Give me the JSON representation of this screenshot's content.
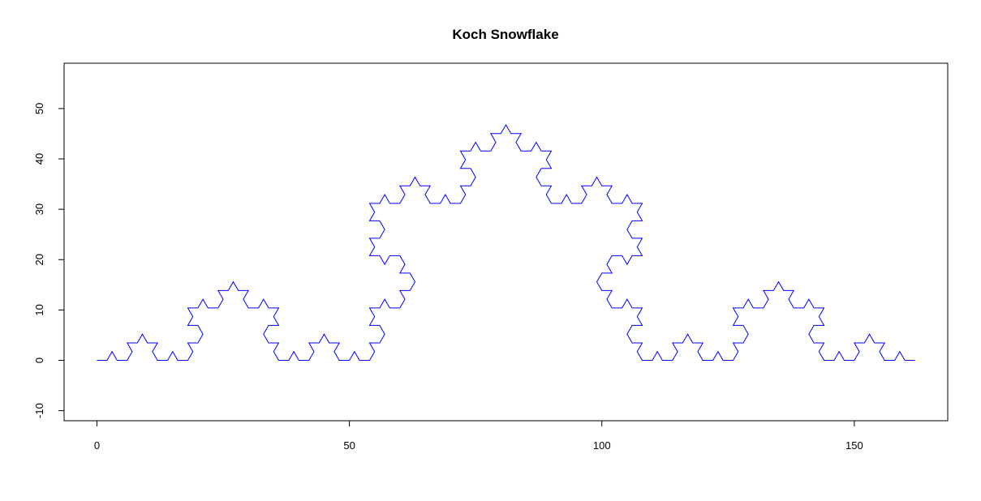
{
  "chart_data": {
    "type": "line",
    "title": "Koch Snowflake",
    "xlabel": "",
    "ylabel": "",
    "xlim": [
      -6.5,
      168.5
    ],
    "ylim": [
      -12,
      59
    ],
    "x_ticks": [
      0,
      50,
      100,
      150
    ],
    "x_tick_labels": [
      "0",
      "50",
      "100",
      "150"
    ],
    "y_ticks": [
      -10,
      0,
      10,
      20,
      30,
      40,
      50
    ],
    "y_tick_labels": [
      "-10",
      "0",
      "10",
      "20",
      "30",
      "40",
      "50"
    ],
    "grid": false,
    "legend": "none",
    "series": [
      {
        "curve": "koch",
        "order": 4,
        "start": [
          0,
          0
        ],
        "end": [
          162,
          0
        ],
        "color": "#0000ff"
      }
    ]
  }
}
